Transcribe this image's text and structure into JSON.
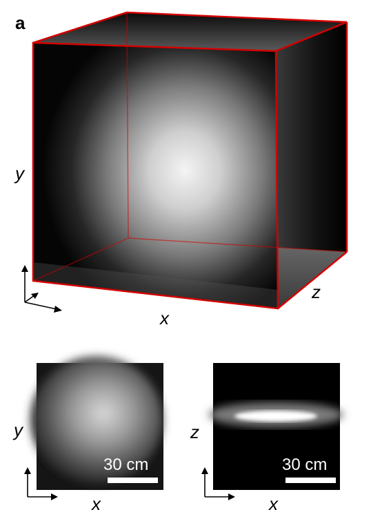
{
  "panel": {
    "label": "a"
  },
  "cube": {
    "axis_labels": {
      "x": "x",
      "y": "y",
      "z": "z"
    },
    "edge_color": "#d40000"
  },
  "slice_xy": {
    "axis_labels": {
      "x": "x",
      "y": "y"
    },
    "scale_bar": "30 cm"
  },
  "slice_xz": {
    "axis_labels": {
      "x": "x",
      "z": "z"
    },
    "scale_bar": "30 cm"
  }
}
